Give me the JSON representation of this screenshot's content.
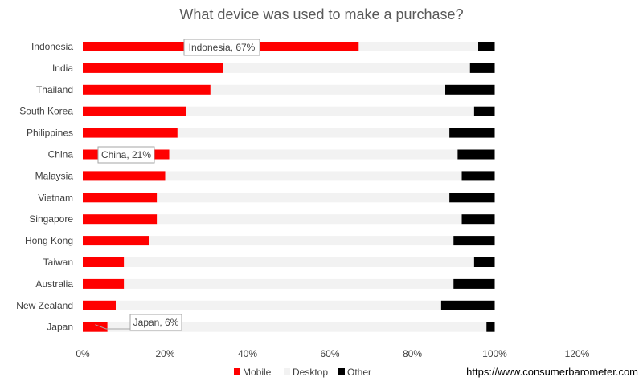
{
  "chart_data": {
    "type": "bar",
    "orientation": "horizontal",
    "stacked": true,
    "title": "What device was used to make a purchase?",
    "categories": [
      "Indonesia",
      "India",
      "Thailand",
      "South Korea",
      "Philippines",
      "China",
      "Malaysia",
      "Vietnam",
      "Singapore",
      "Hong Kong",
      "Taiwan",
      "Australia",
      "New Zealand",
      "Japan"
    ],
    "series": [
      {
        "name": "Mobile",
        "color": "#ff0000",
        "values": [
          67,
          34,
          31,
          25,
          23,
          21,
          20,
          18,
          18,
          16,
          10,
          10,
          8,
          6
        ]
      },
      {
        "name": "Desktop",
        "color": "#f2f2f2",
        "values": [
          29,
          60,
          57,
          70,
          66,
          70,
          72,
          71,
          74,
          74,
          85,
          80,
          79,
          92
        ]
      },
      {
        "name": "Other",
        "color": "#000000",
        "values": [
          4,
          6,
          12,
          5,
          11,
          9,
          8,
          11,
          8,
          10,
          5,
          10,
          13,
          2
        ]
      }
    ],
    "xlim": [
      0,
      120
    ],
    "x_ticks": [
      "0%",
      "20%",
      "40%",
      "60%",
      "80%",
      "100%",
      "120%"
    ],
    "grid": false,
    "legend_position": "bottom",
    "annotations": [
      {
        "category": "Indonesia",
        "text": "Indonesia, 67%"
      },
      {
        "category": "China",
        "text": "China, 21%"
      },
      {
        "category": "Japan",
        "text": "Japan, 6%"
      }
    ]
  },
  "source_text": "https://www.consumerbarometer.com"
}
